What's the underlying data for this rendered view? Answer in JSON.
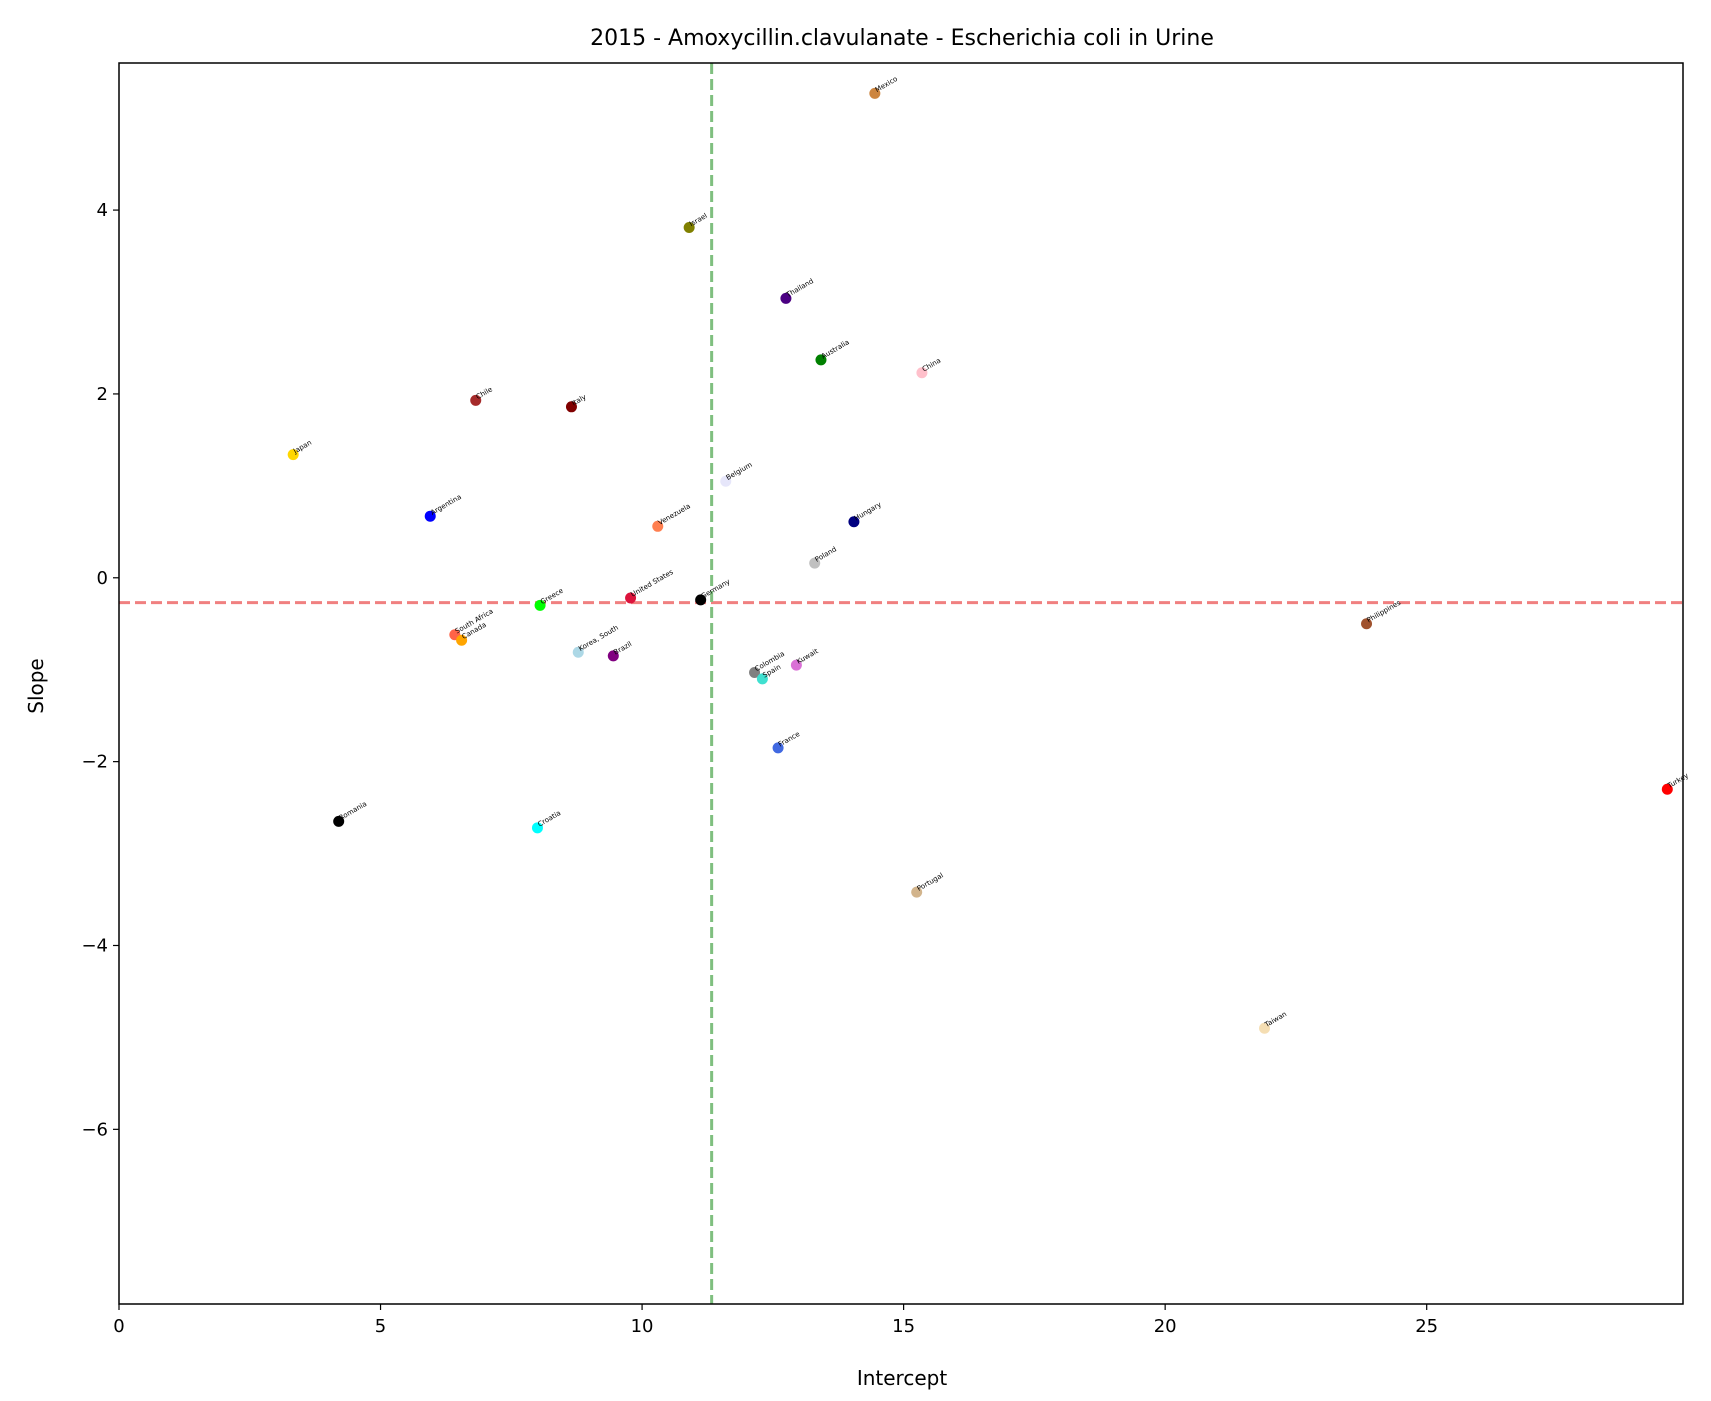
{
  "chart_data": {
    "type": "scatter",
    "title": "2015 - Amoxycillin.clavulanate - Escherichia coli in Urine",
    "xlabel": "Intercept",
    "ylabel": "Slope",
    "xlim": [
      0,
      29.9
    ],
    "ylim": [
      -7.9,
      5.6
    ],
    "xticks": [
      0,
      5,
      10,
      15,
      20,
      25
    ],
    "yticks": [
      -6,
      -4,
      -2,
      0,
      2,
      4
    ],
    "grid": false,
    "legend": "none",
    "reference_lines": [
      {
        "orientation": "horizontal",
        "value": -0.27,
        "color": "#f08080",
        "style": "dashed"
      },
      {
        "orientation": "vertical",
        "value": 11.33,
        "color": "#7fbf7f",
        "style": "dashed"
      }
    ],
    "points": [
      {
        "label": "Mexico",
        "x": 14.45,
        "y": 5.27,
        "color": "#cd853f"
      },
      {
        "label": "Israel",
        "x": 10.9,
        "y": 3.81,
        "color": "#808000"
      },
      {
        "label": "Thailand",
        "x": 12.75,
        "y": 3.04,
        "color": "#4b0082"
      },
      {
        "label": "Australia",
        "x": 13.42,
        "y": 2.37,
        "color": "#008000"
      },
      {
        "label": "China",
        "x": 15.35,
        "y": 2.23,
        "color": "#ffc0cb"
      },
      {
        "label": "Chile",
        "x": 6.82,
        "y": 1.93,
        "color": "#a52a2a"
      },
      {
        "label": "Italy",
        "x": 8.65,
        "y": 1.86,
        "color": "#800000"
      },
      {
        "label": "Japan",
        "x": 3.33,
        "y": 1.34,
        "color": "#ffd700"
      },
      {
        "label": "Belgium",
        "x": 11.6,
        "y": 1.05,
        "color": "#e6e6fa"
      },
      {
        "label": "Argentina",
        "x": 5.95,
        "y": 0.67,
        "color": "#0000ff"
      },
      {
        "label": "Hungary",
        "x": 14.05,
        "y": 0.61,
        "color": "#000080"
      },
      {
        "label": "Venezuela",
        "x": 10.3,
        "y": 0.56,
        "color": "#ff7f50"
      },
      {
        "label": "Poland",
        "x": 13.3,
        "y": 0.16,
        "color": "#c0c0c0"
      },
      {
        "label": "United States",
        "x": 9.78,
        "y": -0.22,
        "color": "#dc143c"
      },
      {
        "label": "Germany",
        "x": 11.12,
        "y": -0.24,
        "color": "#000000"
      },
      {
        "label": "Greece",
        "x": 8.05,
        "y": -0.3,
        "color": "#00ff00"
      },
      {
        "label": "South Africa",
        "x": 6.42,
        "y": -0.62,
        "color": "#ff6347"
      },
      {
        "label": "Canada",
        "x": 6.55,
        "y": -0.68,
        "color": "#ffa500"
      },
      {
        "label": "Korea, South",
        "x": 8.78,
        "y": -0.81,
        "color": "#add8e6"
      },
      {
        "label": "Brazil",
        "x": 9.45,
        "y": -0.85,
        "color": "#800080"
      },
      {
        "label": "Colombia",
        "x": 12.15,
        "y": -1.03,
        "color": "#808080"
      },
      {
        "label": "Spain",
        "x": 12.3,
        "y": -1.1,
        "color": "#40e0d0"
      },
      {
        "label": "Kuwait",
        "x": 12.95,
        "y": -0.95,
        "color": "#da70d6"
      },
      {
        "label": "Philippines",
        "x": 23.85,
        "y": -0.5,
        "color": "#a0522d"
      },
      {
        "label": "France",
        "x": 12.6,
        "y": -1.85,
        "color": "#4169e1"
      },
      {
        "label": "Turkey",
        "x": 29.6,
        "y": -2.3,
        "color": "#ff0000"
      },
      {
        "label": "Romania",
        "x": 4.2,
        "y": -2.65,
        "color": "#000000"
      },
      {
        "label": "Croatia",
        "x": 8.0,
        "y": -2.72,
        "color": "#00ffff"
      },
      {
        "label": "Portugal",
        "x": 15.25,
        "y": -3.42,
        "color": "#d2b48c"
      },
      {
        "label": "Taiwan",
        "x": 21.9,
        "y": -4.9,
        "color": "#f5deb3"
      }
    ]
  }
}
